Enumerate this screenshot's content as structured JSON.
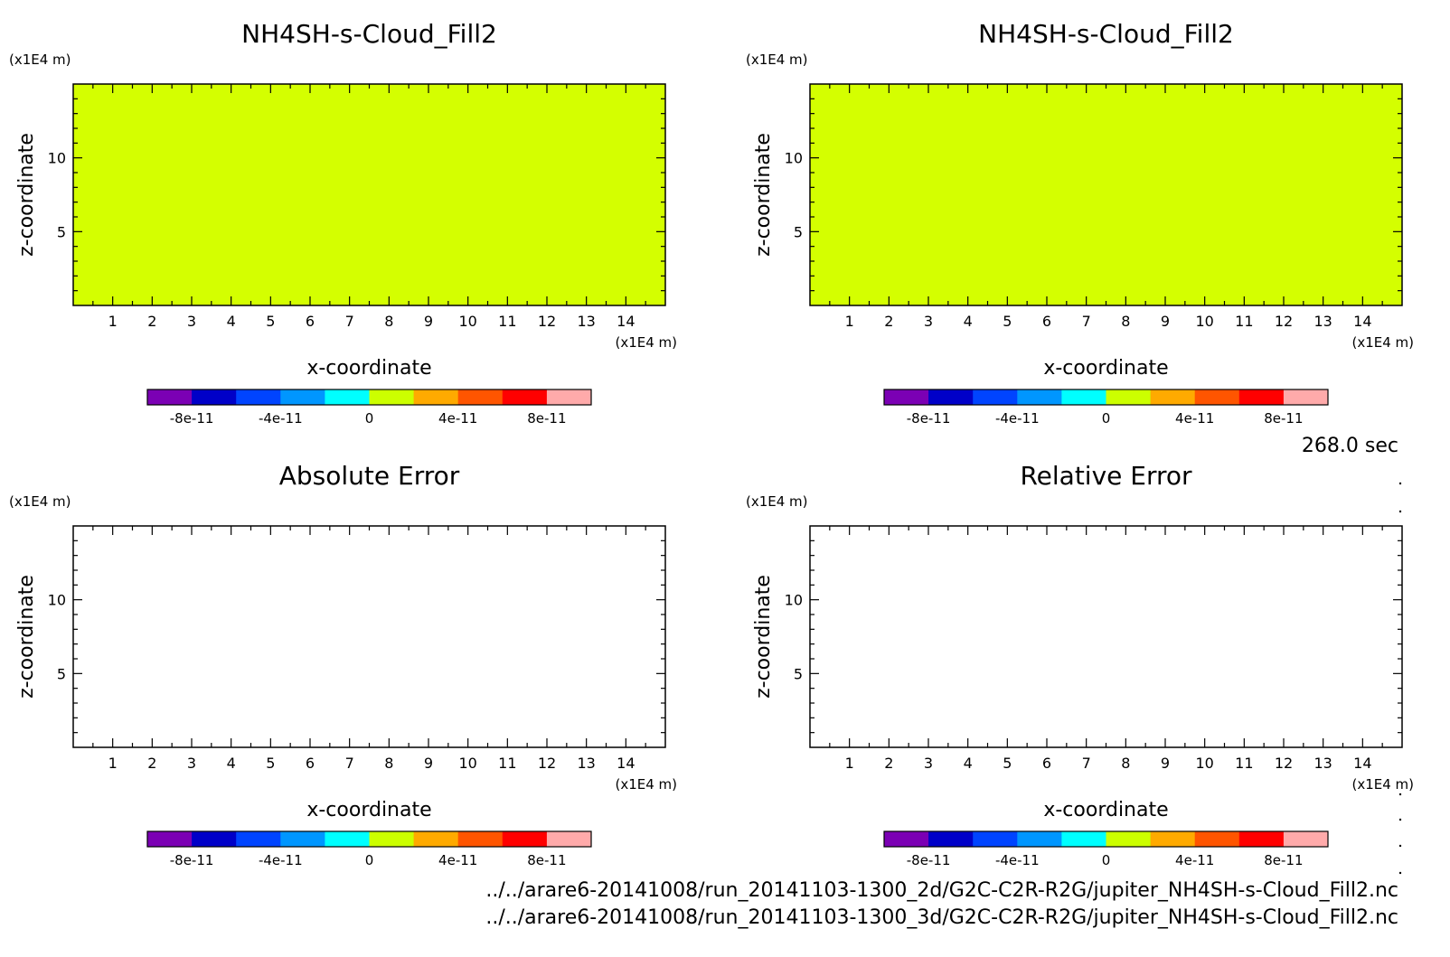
{
  "time_label": "268.0 sec",
  "footer": {
    "file_2d": "../../arare6-20141008/run_20141103-1300_2d/G2C-C2R-R2G/jupiter_NH4SH-s-Cloud_Fill2.nc",
    "file_3d": "../../arare6-20141008/run_20141103-1300_3d/G2C-C2R-R2G/jupiter_NH4SH-s-Cloud_Fill2.nc"
  },
  "colorbar": {
    "colors": [
      "#7b00b4",
      "#0000c8",
      "#0044ff",
      "#0096ff",
      "#00ffff",
      "#ccff00",
      "#ffaa00",
      "#ff5500",
      "#ff0000",
      "#ffaaaa"
    ],
    "tick_labels": [
      "-8e-11",
      "-4e-11",
      "0",
      "4e-11",
      "8e-11"
    ]
  },
  "chart_data": [
    {
      "type": "heatmap",
      "title": "NH4SH-s-Cloud_Fill2",
      "xlabel": "x-coordinate",
      "ylabel": "z-coordinate",
      "x_unit": "(x1E4 m)",
      "y_unit": "(x1E4 m)",
      "xlim": [
        0,
        15
      ],
      "ylim": [
        0,
        15
      ],
      "x_ticks": [
        1,
        2,
        3,
        4,
        5,
        6,
        7,
        8,
        9,
        10,
        11,
        12,
        13,
        14
      ],
      "y_ticks": [
        5,
        10
      ],
      "field_value": 0,
      "fill_color": "#d4ff00"
    },
    {
      "type": "heatmap",
      "title": "NH4SH-s-Cloud_Fill2",
      "xlabel": "x-coordinate",
      "ylabel": "z-coordinate",
      "x_unit": "(x1E4 m)",
      "y_unit": "(x1E4 m)",
      "xlim": [
        0,
        15
      ],
      "ylim": [
        0,
        15
      ],
      "x_ticks": [
        1,
        2,
        3,
        4,
        5,
        6,
        7,
        8,
        9,
        10,
        11,
        12,
        13,
        14
      ],
      "y_ticks": [
        5,
        10
      ],
      "field_value": 0,
      "fill_color": "#d4ff00"
    },
    {
      "type": "heatmap",
      "title": "Absolute Error",
      "xlabel": "x-coordinate",
      "ylabel": "z-coordinate",
      "x_unit": "(x1E4 m)",
      "y_unit": "(x1E4 m)",
      "xlim": [
        0,
        15
      ],
      "ylim": [
        0,
        15
      ],
      "x_ticks": [
        1,
        2,
        3,
        4,
        5,
        6,
        7,
        8,
        9,
        10,
        11,
        12,
        13,
        14
      ],
      "y_ticks": [
        5,
        10
      ],
      "field_value": null,
      "fill_color": "#ffffff"
    },
    {
      "type": "heatmap",
      "title": "Relative Error",
      "xlabel": "x-coordinate",
      "ylabel": "z-coordinate",
      "x_unit": "(x1E4 m)",
      "y_unit": "(x1E4 m)",
      "xlim": [
        0,
        15
      ],
      "ylim": [
        0,
        15
      ],
      "x_ticks": [
        1,
        2,
        3,
        4,
        5,
        6,
        7,
        8,
        9,
        10,
        11,
        12,
        13,
        14
      ],
      "y_ticks": [
        5,
        10
      ],
      "field_value": null,
      "fill_color": "#ffffff"
    }
  ]
}
